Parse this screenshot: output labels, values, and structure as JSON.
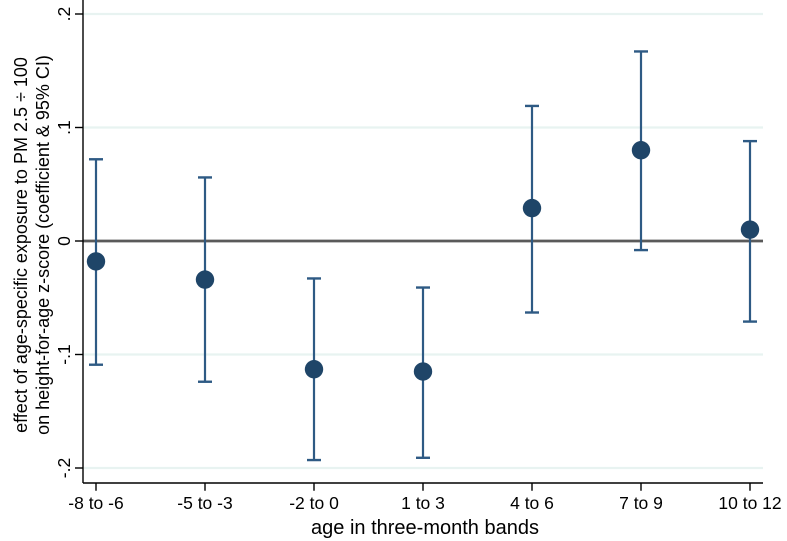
{
  "figure": {
    "background": "#ffffff"
  },
  "chart_data": {
    "type": "scatter",
    "subtype": "coefficient-plot-with-95ci-error-bars",
    "title": "",
    "xlabel": "age in three-month bands",
    "ylabel_line1": "effect of age-specific exposure to PM 2.5 ÷ 100",
    "ylabel_line2": "on height-for-age z-score (coefficient & 95% CI)",
    "categories": [
      "-8 to -6",
      "-5 to -3",
      "-2 to 0",
      "1 to 3",
      "4 to 6",
      "7 to 9",
      "10 to 12"
    ],
    "series": [
      {
        "name": "coefficient",
        "values": [
          -0.018,
          -0.034,
          -0.113,
          -0.115,
          0.029,
          0.08,
          0.01
        ],
        "ci_low": [
          -0.109,
          -0.124,
          -0.193,
          -0.191,
          -0.063,
          -0.008,
          -0.071
        ],
        "ci_high": [
          0.072,
          0.056,
          -0.033,
          -0.041,
          0.119,
          0.167,
          0.088
        ]
      }
    ],
    "yticks": [
      0.2,
      0.1,
      0,
      -0.1,
      -0.2
    ],
    "ytick_labels": [
      ".2",
      ".1",
      "0",
      "-.1",
      "-.2"
    ],
    "ylim": [
      -0.213,
      0.2125
    ],
    "reference_line_y": 0,
    "grid": true,
    "legend_position": "none",
    "colors": {
      "marker": "#1f4568",
      "ci_line": "#2e5a84",
      "grid_line": "#e8f3f1",
      "zero_line": "#5a5a5a",
      "axis": "#000000"
    }
  }
}
